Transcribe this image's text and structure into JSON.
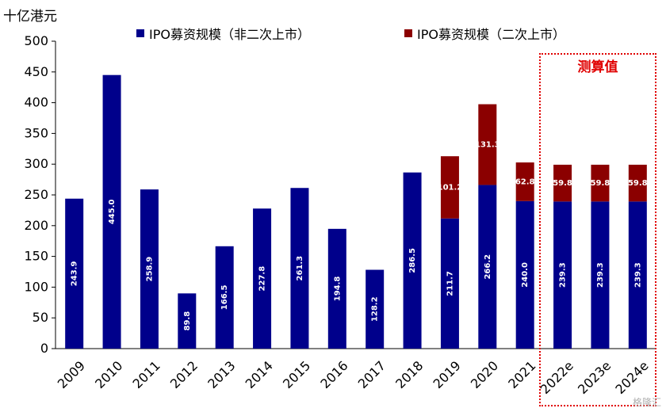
{
  "chart_data": {
    "type": "bar",
    "stacked": true,
    "y_unit": "十亿港元",
    "ylim": [
      0,
      500
    ],
    "yticks": [
      0,
      50,
      100,
      150,
      200,
      250,
      300,
      350,
      400,
      450,
      500
    ],
    "categories": [
      "2009",
      "2010",
      "2011",
      "2012",
      "2013",
      "2014",
      "2015",
      "2016",
      "2017",
      "2018",
      "2019",
      "2020",
      "2021",
      "2022e",
      "2023e",
      "2024e"
    ],
    "series": [
      {
        "name": "IPO募资规模（非二次上市）",
        "color": "#00008b",
        "values": [
          243.9,
          445.0,
          258.9,
          89.8,
          166.5,
          227.8,
          261.3,
          194.8,
          128.2,
          286.5,
          211.7,
          266.2,
          240.0,
          239.3,
          239.3,
          239.3
        ],
        "labels": [
          "243.9",
          "445.0",
          "258.9",
          "89.8",
          "166.5",
          "227.8",
          "261.3",
          "194.8",
          "128.2",
          "286.5",
          "211.7",
          "266.2",
          "240.0",
          "239.3",
          "239.3",
          "239.3"
        ]
      },
      {
        "name": "IPO募资规模（二次上市）",
        "color": "#8b0000",
        "values": [
          0,
          0,
          0,
          0,
          0,
          0,
          0,
          0,
          0,
          0,
          101.2,
          131.3,
          62.8,
          59.8,
          59.8,
          59.8
        ],
        "labels": [
          "",
          "",
          "",
          "",
          "",
          "",
          "",
          "",
          "",
          "",
          "101.2",
          "131.3",
          "62.8",
          "59.8",
          "59.8",
          "59.8"
        ]
      }
    ],
    "legend_position": "top",
    "grid": false,
    "annotation": "测算值",
    "annotation_color": "#e00000"
  },
  "watermark": "格隆汇"
}
